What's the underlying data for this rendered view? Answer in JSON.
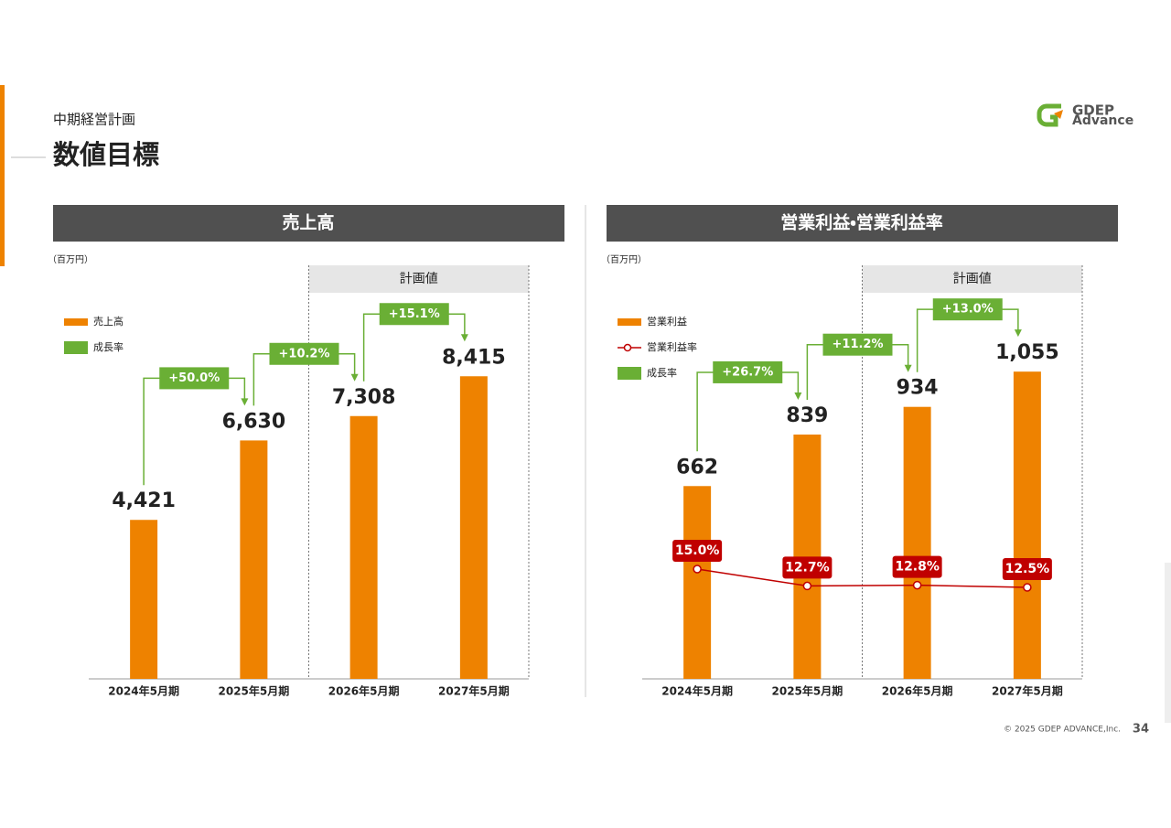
{
  "header": {
    "section": "中期経営計画",
    "title": "数値目標"
  },
  "logo": [
    "GDEP",
    "Advance"
  ],
  "footer": {
    "copyright": "© 2025 GDEP ADVANCE,Inc.",
    "page": "34"
  },
  "chart_data": [
    {
      "type": "bar",
      "title": "売上高",
      "unit": "（百万円）",
      "plan_label": "計画値",
      "categories": [
        "2024年5月期",
        "2025年5月期",
        "2026年5月期",
        "2027年5月期"
      ],
      "ylim": [
        0,
        11500
      ],
      "series": [
        {
          "name": "売上高",
          "color": "#ee8200",
          "values": [
            4421,
            6630,
            7308,
            8415
          ],
          "value_labels": [
            "4,421",
            "6,630",
            "7,308",
            "8,415"
          ]
        }
      ],
      "growth": {
        "name": "成長率",
        "color": "#6aaf35",
        "values": [
          50.0,
          10.2,
          15.1
        ],
        "value_labels": [
          "+50.0%",
          "+10.2%",
          "+15.1%"
        ]
      }
    },
    {
      "type": "bar",
      "title": "営業利益・営業利益率",
      "unit": "（百万円）",
      "plan_label": "計画値",
      "categories": [
        "2024年5月期",
        "2025年5月期",
        "2026年5月期",
        "2027年5月期"
      ],
      "ylim": [
        0,
        1420
      ],
      "y2lim": [
        0,
        56.5
      ],
      "series": [
        {
          "name": "営業利益",
          "color": "#ee8200",
          "values": [
            662,
            839,
            934,
            1055
          ],
          "value_labels": [
            "662",
            "839",
            "934",
            "1,055"
          ]
        },
        {
          "name": "営業利益率",
          "color": "#c00000",
          "axis": "y2",
          "values": [
            15.0,
            12.7,
            12.8,
            12.5
          ],
          "value_labels": [
            "15.0%",
            "12.7%",
            "12.8%",
            "12.5%"
          ]
        }
      ],
      "growth": {
        "name": "成長率",
        "color": "#6aaf35",
        "values": [
          26.7,
          11.2,
          13.0
        ],
        "value_labels": [
          "+26.7%",
          "+11.2%",
          "+13.0%"
        ]
      }
    }
  ]
}
